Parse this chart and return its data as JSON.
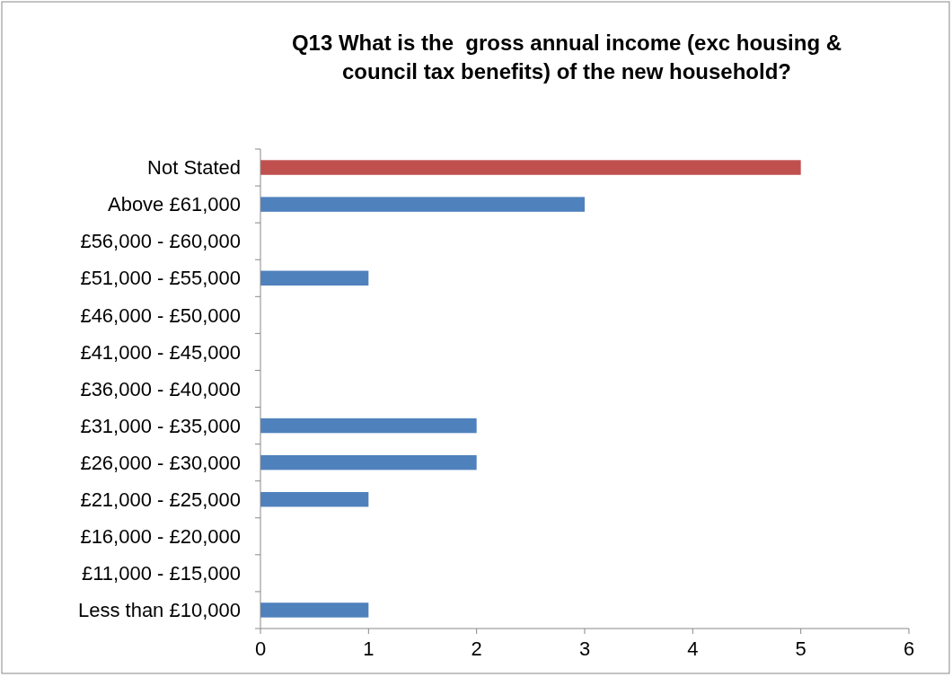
{
  "chart_data": {
    "type": "bar",
    "orientation": "horizontal",
    "title": "Q13 What is the  gross annual income (exc housing & council tax benefits) of the new household?",
    "categories": [
      "Not Stated",
      "Above £61,000",
      "£56,000 - £60,000",
      "£51,000 - £55,000",
      "£46,000 - £50,000",
      "£41,000 - £45,000",
      "£36,000 - £40,000",
      "£31,000 - £35,000",
      "£26,000 - £30,000",
      "£21,000 - £25,000",
      "£16,000 - £20,000",
      "£11,000 - £15,000",
      "Less than £10,000"
    ],
    "values": [
      5,
      3,
      0,
      1,
      0,
      0,
      0,
      2,
      2,
      1,
      0,
      0,
      1
    ],
    "colors": [
      "#c0504d",
      "#4f81bd",
      "#4f81bd",
      "#4f81bd",
      "#4f81bd",
      "#4f81bd",
      "#4f81bd",
      "#4f81bd",
      "#4f81bd",
      "#4f81bd",
      "#4f81bd",
      "#4f81bd",
      "#4f81bd"
    ],
    "xlim": [
      0,
      6
    ],
    "xticks": [
      0,
      1,
      2,
      3,
      4,
      5,
      6
    ],
    "grid": false
  }
}
